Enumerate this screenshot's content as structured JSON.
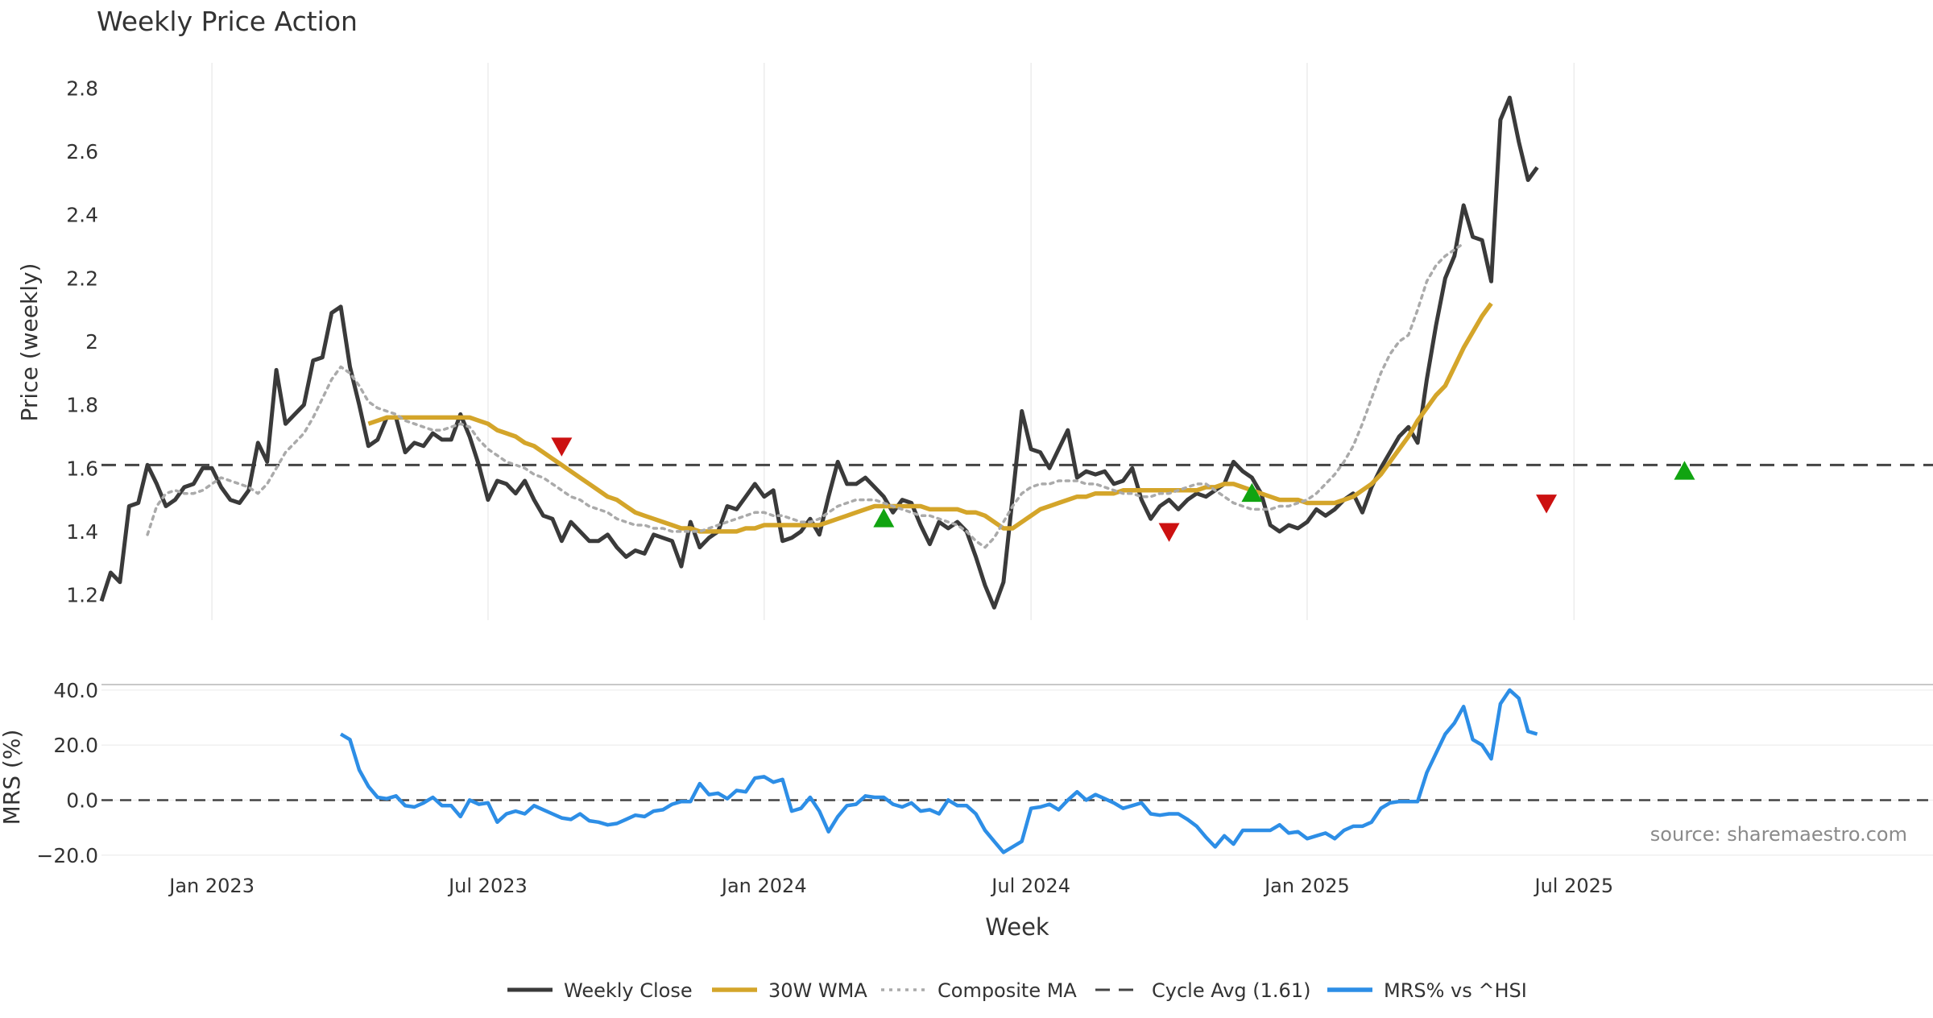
{
  "chart_data": {
    "type": "line",
    "title": "Weekly Price Action",
    "source": "source: sharemaestro.com",
    "xlabel": "Week",
    "x_ticks": [
      "Jan 2023",
      "Jul 2023",
      "Jan 2024",
      "Jul 2024",
      "Jan 2025",
      "Jul 2025"
    ],
    "panels": {
      "price": {
        "ylabel": "Price (weekly)",
        "ylim": [
          1.12,
          2.88
        ],
        "y_ticks": [
          1.2,
          1.4,
          1.6,
          1.8,
          2,
          2.2,
          2.4,
          2.6,
          2.8
        ],
        "y_tick_labels": [
          "1.2",
          "1.4",
          "1.6",
          "1.8",
          "2",
          "2.2",
          "2.4",
          "2.6",
          "2.8"
        ]
      },
      "mrs": {
        "ylabel": "MRS (%)",
        "ylim": [
          -23,
          42
        ],
        "y_ticks": [
          40,
          20,
          0,
          -20
        ],
        "y_tick_labels": [
          "40.0",
          "20.0",
          "0.0",
          "−20.0"
        ]
      }
    },
    "weeks": 200,
    "x_range": [
      0,
      199
    ],
    "cycle_avg": 1.61,
    "series": [
      {
        "name": "Weekly Close",
        "color": "#3a3a3a",
        "style": "solid",
        "panel": "price",
        "values": [
          1.18,
          1.27,
          1.24,
          1.48,
          1.49,
          1.61,
          1.55,
          1.48,
          1.5,
          1.54,
          1.55,
          1.6,
          1.6,
          1.54,
          1.5,
          1.49,
          1.53,
          1.68,
          1.62,
          1.91,
          1.74,
          1.77,
          1.8,
          1.94,
          1.95,
          2.09,
          2.11,
          1.92,
          1.8,
          1.67,
          1.69,
          1.76,
          1.76,
          1.65,
          1.68,
          1.67,
          1.71,
          1.69,
          1.69,
          1.77,
          1.7,
          1.61,
          1.5,
          1.56,
          1.55,
          1.52,
          1.56,
          1.5,
          1.45,
          1.44,
          1.37,
          1.43,
          1.4,
          1.37,
          1.37,
          1.39,
          1.35,
          1.32,
          1.34,
          1.33,
          1.39,
          1.38,
          1.37,
          1.29,
          1.43,
          1.35,
          1.38,
          1.4,
          1.48,
          1.47,
          1.51,
          1.55,
          1.51,
          1.53,
          1.37,
          1.38,
          1.4,
          1.44,
          1.39,
          1.51,
          1.62,
          1.55,
          1.55,
          1.57,
          1.54,
          1.51,
          1.46,
          1.5,
          1.49,
          1.42,
          1.36,
          1.43,
          1.41,
          1.43,
          1.4,
          1.32,
          1.23,
          1.16,
          1.24,
          1.51,
          1.78,
          1.66,
          1.65,
          1.6,
          1.66,
          1.72,
          1.57,
          1.59,
          1.58,
          1.59,
          1.55,
          1.56,
          1.6,
          1.5,
          1.44,
          1.48,
          1.5,
          1.47,
          1.5,
          1.52,
          1.51,
          1.53,
          1.55,
          1.62,
          1.59,
          1.57,
          1.52,
          1.42,
          1.4,
          1.42,
          1.41,
          1.43,
          1.47,
          1.45,
          1.47,
          1.5,
          1.52,
          1.46,
          1.54,
          1.6,
          1.65,
          1.7,
          1.73,
          1.68,
          1.88,
          2.05,
          2.2,
          2.27,
          2.43,
          2.33,
          2.32,
          2.19,
          2.7,
          2.77,
          2.63,
          2.51,
          2.55
        ]
      },
      {
        "name": "30W WMA",
        "color": "#d4a52a",
        "style": "solid",
        "panel": "price",
        "start_index": 29,
        "values": [
          1.74,
          1.75,
          1.76,
          1.76,
          1.76,
          1.76,
          1.76,
          1.76,
          1.76,
          1.76,
          1.76,
          1.76,
          1.75,
          1.74,
          1.72,
          1.71,
          1.7,
          1.68,
          1.67,
          1.65,
          1.63,
          1.61,
          1.59,
          1.57,
          1.55,
          1.53,
          1.51,
          1.5,
          1.48,
          1.46,
          1.45,
          1.44,
          1.43,
          1.42,
          1.41,
          1.41,
          1.4,
          1.4,
          1.4,
          1.4,
          1.4,
          1.41,
          1.41,
          1.42,
          1.42,
          1.42,
          1.42,
          1.42,
          1.42,
          1.42,
          1.43,
          1.44,
          1.45,
          1.46,
          1.47,
          1.48,
          1.48,
          1.48,
          1.48,
          1.48,
          1.48,
          1.47,
          1.47,
          1.47,
          1.47,
          1.46,
          1.46,
          1.45,
          1.43,
          1.41,
          1.41,
          1.43,
          1.45,
          1.47,
          1.48,
          1.49,
          1.5,
          1.51,
          1.51,
          1.52,
          1.52,
          1.52,
          1.53,
          1.53,
          1.53,
          1.53,
          1.53,
          1.53,
          1.53,
          1.53,
          1.53,
          1.54,
          1.54,
          1.55,
          1.55,
          1.54,
          1.53,
          1.52,
          1.51,
          1.5,
          1.5,
          1.5,
          1.49,
          1.49,
          1.49,
          1.49,
          1.5,
          1.51,
          1.53,
          1.55,
          1.58,
          1.62,
          1.66,
          1.7,
          1.75,
          1.79,
          1.83,
          1.86,
          1.92,
          1.98,
          2.03,
          2.08,
          2.12
        ]
      },
      {
        "name": "Composite MA",
        "color": "#aaaaaa",
        "style": "dotted",
        "panel": "price",
        "start_index": 5,
        "values": [
          1.39,
          1.48,
          1.52,
          1.53,
          1.52,
          1.52,
          1.53,
          1.55,
          1.57,
          1.56,
          1.55,
          1.54,
          1.52,
          1.55,
          1.6,
          1.65,
          1.68,
          1.71,
          1.76,
          1.82,
          1.88,
          1.92,
          1.9,
          1.86,
          1.81,
          1.79,
          1.78,
          1.77,
          1.75,
          1.74,
          1.73,
          1.72,
          1.72,
          1.73,
          1.74,
          1.73,
          1.69,
          1.66,
          1.64,
          1.62,
          1.61,
          1.6,
          1.58,
          1.57,
          1.55,
          1.53,
          1.51,
          1.5,
          1.48,
          1.47,
          1.46,
          1.44,
          1.43,
          1.42,
          1.42,
          1.41,
          1.41,
          1.4,
          1.4,
          1.4,
          1.4,
          1.41,
          1.42,
          1.43,
          1.44,
          1.45,
          1.46,
          1.46,
          1.45,
          1.45,
          1.44,
          1.43,
          1.43,
          1.44,
          1.46,
          1.48,
          1.49,
          1.5,
          1.5,
          1.5,
          1.49,
          1.48,
          1.47,
          1.46,
          1.45,
          1.45,
          1.44,
          1.43,
          1.42,
          1.4,
          1.37,
          1.35,
          1.38,
          1.43,
          1.48,
          1.52,
          1.54,
          1.55,
          1.55,
          1.56,
          1.56,
          1.56,
          1.55,
          1.55,
          1.54,
          1.53,
          1.52,
          1.52,
          1.51,
          1.51,
          1.52,
          1.52,
          1.53,
          1.54,
          1.55,
          1.55,
          1.53,
          1.51,
          1.49,
          1.48,
          1.47,
          1.47,
          1.47,
          1.48,
          1.48,
          1.49,
          1.5,
          1.52,
          1.55,
          1.58,
          1.62,
          1.67,
          1.74,
          1.82,
          1.9,
          1.96,
          2.0,
          2.02,
          2.1,
          2.19,
          2.24,
          2.27,
          2.29,
          2.31
        ]
      },
      {
        "name": "Cycle Avg (1.61)",
        "color": "#444444",
        "style": "dashed",
        "panel": "price",
        "value": 1.61
      },
      {
        "name": "MRS% vs ^HSI",
        "color": "#2d8ee6",
        "style": "solid",
        "panel": "mrs",
        "start_index": 26,
        "values": [
          24,
          22,
          11,
          5,
          1,
          0.5,
          1.5,
          -2,
          -2.5,
          -1,
          1,
          -2,
          -2,
          -6,
          0,
          -1.5,
          -1,
          -8,
          -5,
          -4,
          -5,
          -2,
          -3.5,
          -5,
          -6.5,
          -7,
          -5,
          -7.5,
          -8,
          -9,
          -8.5,
          -7,
          -5.5,
          -6,
          -4,
          -3.5,
          -1.5,
          -0.5,
          -0.5,
          6,
          2,
          2.5,
          0.5,
          3.5,
          3,
          8,
          8.5,
          6.5,
          7.5,
          -4,
          -3,
          1,
          -4,
          -11.5,
          -6,
          -2,
          -1.5,
          1.5,
          1,
          1,
          -1.5,
          -2.5,
          -1,
          -4,
          -3.5,
          -5,
          0,
          -2,
          -2,
          -5,
          -11,
          -15,
          -19,
          -17,
          -15,
          -3,
          -2.5,
          -1.5,
          -3.5,
          0,
          3,
          0,
          2,
          0.5,
          -1,
          -3,
          -2,
          -1,
          -5,
          -5.5,
          -5,
          -5,
          -7,
          -9.5,
          -13.5,
          -17,
          -13,
          -16,
          -11,
          -11,
          -11,
          -11,
          -9,
          -12,
          -11.5,
          -14,
          -13,
          -12,
          -14,
          -11,
          -9.5,
          -9.5,
          -8,
          -3,
          -1,
          -0.5,
          -0.5,
          -0.5,
          10,
          17,
          24,
          28,
          34,
          22,
          20,
          15,
          35,
          40,
          37,
          25,
          24
        ]
      }
    ],
    "markers": [
      {
        "type": "sell",
        "x": 50,
        "y": 1.67,
        "color": "#cc1111"
      },
      {
        "type": "buy",
        "x": 85,
        "y": 1.44,
        "color": "#11a411"
      },
      {
        "type": "sell",
        "x": 116,
        "y": 1.4,
        "color": "#cc1111"
      },
      {
        "type": "buy",
        "x": 125,
        "y": 1.52,
        "color": "#11a411"
      },
      {
        "type": "sell",
        "x": 157,
        "y": 1.49,
        "color": "#cc1111"
      },
      {
        "type": "buy",
        "x": 172,
        "y": 1.59,
        "color": "#11a411"
      }
    ],
    "legend": {
      "placement": "bottom-center",
      "entries": [
        "Weekly Close",
        "30W WMA",
        "Composite MA",
        "Cycle Avg (1.61)",
        "MRS% vs ^HSI"
      ]
    }
  }
}
